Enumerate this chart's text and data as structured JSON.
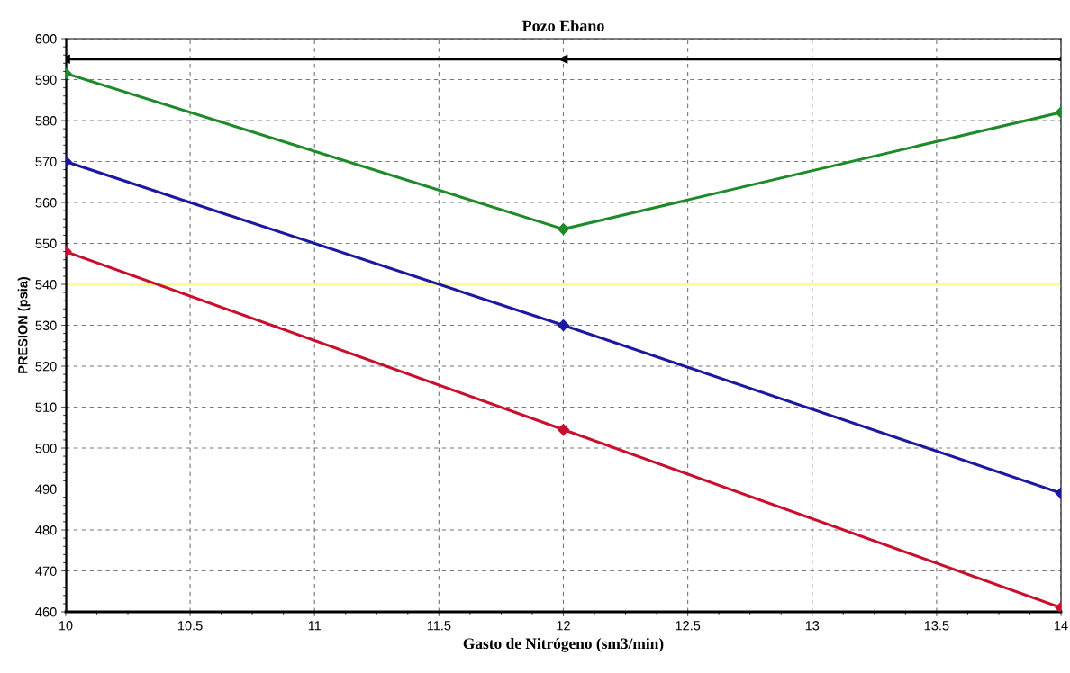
{
  "chart_data": {
    "type": "line",
    "title": "Pozo Ebano",
    "xlabel": "Gasto de Nitrógeno (sm3/min)",
    "ylabel": "PRESION (psia)",
    "x": [
      10,
      12,
      14
    ],
    "series": [
      {
        "color": "#000000",
        "values": [
          595,
          595,
          595
        ],
        "marker": "triangle"
      },
      {
        "color": "#1f8a2a",
        "values": [
          591.5,
          553.5,
          582
        ],
        "marker": "diamond"
      },
      {
        "color": "#1a1aa0",
        "values": [
          570,
          530,
          489
        ],
        "marker": "diamond"
      },
      {
        "color": "#c8102e",
        "values": [
          548,
          504.5,
          461
        ],
        "marker": "diamond"
      }
    ],
    "ref_lines": [
      {
        "axis": "y",
        "value": 540,
        "color": "#ffff88"
      },
      {
        "axis": "x",
        "value": 10,
        "color": "#000000"
      }
    ],
    "xlim": [
      10,
      14
    ],
    "ylim": [
      460,
      600
    ],
    "xticks": [
      10,
      10.5,
      11,
      11.5,
      12,
      12.5,
      13,
      13.5,
      14
    ],
    "yticks": [
      460,
      470,
      480,
      490,
      500,
      510,
      520,
      530,
      540,
      550,
      560,
      570,
      580,
      590,
      600
    ],
    "grid": true,
    "line_style": "solid"
  }
}
